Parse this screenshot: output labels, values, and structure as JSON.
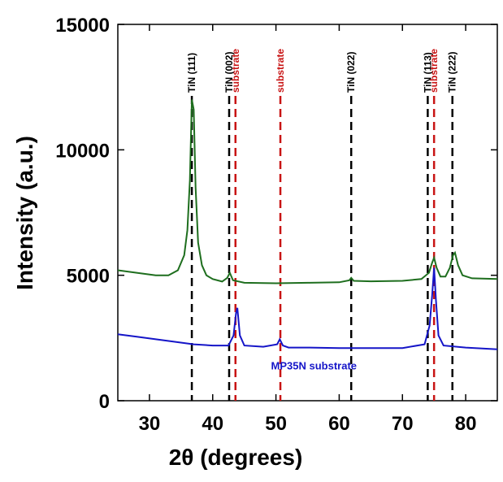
{
  "chart_data": {
    "type": "line",
    "xlabel": "2θ (degrees)",
    "ylabel": "Intensity (a.u.)",
    "xlim": [
      25,
      85
    ],
    "xticks": [
      30,
      40,
      50,
      60,
      70,
      80
    ],
    "ylim": [
      0,
      15000
    ],
    "yticks": [
      0,
      5000,
      10000,
      15000
    ],
    "series": [
      {
        "color": "#1e6e1e",
        "x": [
          25,
          28,
          31,
          33,
          34.5,
          35.5,
          36,
          36.4,
          36.7,
          37,
          37.3,
          37.7,
          38.3,
          39,
          40,
          41.5,
          42.3,
          42.7,
          43.2,
          45,
          50,
          55,
          60,
          61.6,
          61.9,
          62.3,
          65,
          70,
          73,
          74.2,
          74.7,
          75,
          75.4,
          76,
          76.8,
          77.5,
          78,
          78.3,
          78.8,
          79.5,
          81,
          85
        ],
        "values": [
          5200,
          5100,
          5000,
          5000,
          5200,
          5800,
          6800,
          8800,
          12000,
          11600,
          8500,
          6300,
          5400,
          5000,
          4850,
          4750,
          4900,
          5100,
          4800,
          4700,
          4680,
          4700,
          4720,
          4800,
          4900,
          4780,
          4760,
          4780,
          4850,
          5100,
          5500,
          5700,
          5300,
          4950,
          4950,
          5300,
          5800,
          5900,
          5400,
          5000,
          4880,
          4850
        ]
      },
      {
        "color": "#1515c8",
        "x": [
          25,
          28,
          31,
          34,
          37,
          40,
          42.5,
          43.3,
          43.7,
          43.9,
          44.3,
          45,
          48,
          50.2,
          50.6,
          51.1,
          52,
          55,
          60,
          65,
          70,
          73.5,
          74.3,
          74.7,
          75,
          75.3,
          75.7,
          76.5,
          80,
          85
        ],
        "values": [
          2650,
          2550,
          2450,
          2350,
          2250,
          2200,
          2200,
          2600,
          3500,
          3700,
          2600,
          2200,
          2150,
          2250,
          2450,
          2200,
          2120,
          2120,
          2100,
          2100,
          2100,
          2250,
          3000,
          4200,
          5300,
          4000,
          2600,
          2200,
          2120,
          2050
        ]
      }
    ],
    "annotations": [
      {
        "text": "MP35N substrate",
        "x": 56,
        "y": 1250,
        "color": "#1515c8"
      }
    ],
    "reference_lines": [
      {
        "x": 36.7,
        "label": "TiN (111)",
        "color": "#000000"
      },
      {
        "x": 42.6,
        "label": "TiN (002)",
        "color": "#000000"
      },
      {
        "x": 43.6,
        "label": "substrate",
        "color": "#c81414"
      },
      {
        "x": 50.7,
        "label": "substrate",
        "color": "#c81414"
      },
      {
        "x": 61.9,
        "label": "TiN (022)",
        "color": "#000000"
      },
      {
        "x": 74.0,
        "label": "TiN (113)",
        "color": "#000000"
      },
      {
        "x": 75.0,
        "label": "substrate",
        "color": "#c81414"
      },
      {
        "x": 77.9,
        "label": "TiN (222)",
        "color": "#000000"
      }
    ]
  }
}
